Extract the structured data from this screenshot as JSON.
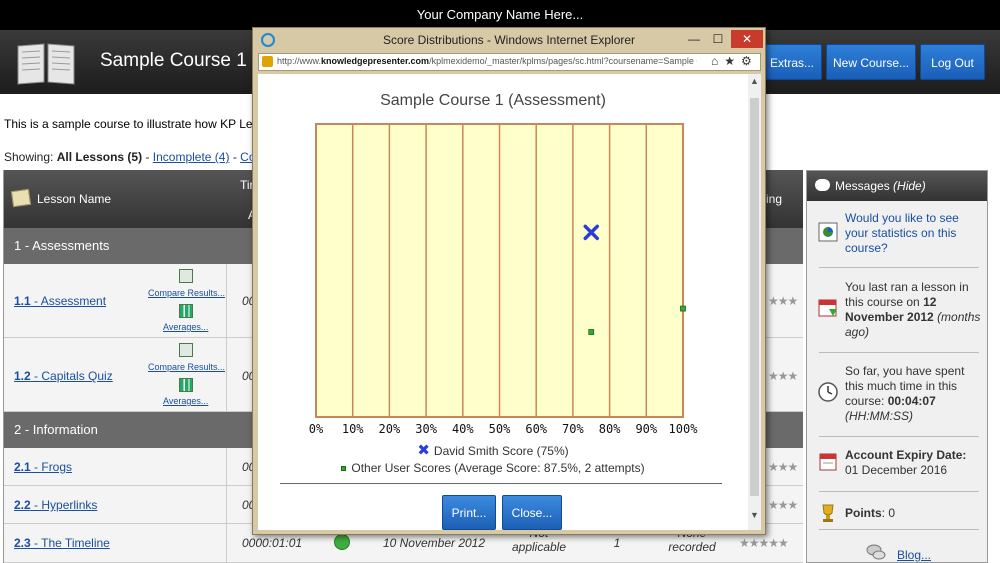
{
  "company_bar": {
    "text": "Your Company Name Here..."
  },
  "header": {
    "course_title": "Sample Course 1",
    "buttons": {
      "extras": "Extras...",
      "new_course": "New Course...",
      "logout": "Log Out"
    }
  },
  "intro": {
    "text": "This is a sample course to illustrate how KP Lear"
  },
  "filter": {
    "prefix": "Showing:",
    "all": "All Lessons (5)",
    "sep": "-",
    "incomplete": "Incomplete (4)",
    "sep2": "-",
    "complete": "Com"
  },
  "table": {
    "headers": {
      "lesson_name": "Lesson Name",
      "time_partial": "Tir",
      "a_partial": "A",
      "rating_partial": "ing"
    },
    "groups": [
      "1 - Assessments",
      "2 - Information"
    ],
    "rows": [
      {
        "number": "1.1",
        "title": "Assessment",
        "time": "00",
        "compare": "Compare Results...",
        "averages": "Averages...",
        "stars": "★★★"
      },
      {
        "number": "1.2",
        "title": "Capitals Quiz",
        "time": "00",
        "compare": "Compare Results...",
        "averages": "Averages...",
        "stars": "★★★"
      },
      {
        "number": "2.1",
        "title": "Frogs",
        "time": "00",
        "stars": "★★★"
      },
      {
        "number": "2.2",
        "title": "Hyperlinks",
        "time": "00",
        "stars": "★★★"
      },
      {
        "number": "2.3",
        "title": "The Timeline",
        "time": "0000:01:01",
        "date": "10 November 2012",
        "score": "Not applicable",
        "attempts": "1",
        "recorded": "None recorded",
        "stars": "★★★★★"
      }
    ]
  },
  "messages": {
    "title": "Messages",
    "hide": "(Hide)",
    "items": {
      "stats_link": "Would you like to see your statistics on this course?",
      "last_ran_prefix": "You last ran a lesson in this course on",
      "last_ran_date": "12 November 2012",
      "last_ran_ago": "(months ago)",
      "time_prefix": "So far, you have spent this much time in this course:",
      "time_value": "00:04:07",
      "time_unit": "(HH:MM:SS)",
      "expiry_label": "Account Expiry Date:",
      "expiry_date": "01 December 2016",
      "points_label": "Points",
      "points_value": ": 0",
      "blog": "Blog..."
    }
  },
  "popup": {
    "window_title": "Score Distributions - Windows Internet Explorer",
    "controls": {
      "minimize": "—",
      "maximize": "☐",
      "close": "✕"
    },
    "address": {
      "prefix": "http://www.",
      "domain": "knowledgepresenter.com",
      "path": "/kplmexidemo/_master/kplms/pages/sc.html?coursename=Sample C"
    },
    "address_icons": "⌂★⚙",
    "print_button": "Print...",
    "close_button": "Close...",
    "legend": {
      "user_series": "David Smith Score (75%)",
      "others_series": "Other User Scores (Average Score: 87.5%, 2 attempts)"
    }
  },
  "chart_data": {
    "type": "scatter",
    "title": "Sample Course 1 (Assessment)",
    "xlabel": "",
    "ylabel": "",
    "xlim": [
      0,
      100
    ],
    "x_ticks": [
      "0%",
      "10%",
      "20%",
      "30%",
      "40%",
      "50%",
      "60%",
      "70%",
      "80%",
      "90%",
      "100%"
    ],
    "grid": "vertical",
    "background": "#ffffcc",
    "series": [
      {
        "name": "David Smith Score (75%)",
        "marker": "x",
        "color": "#2b3fd6",
        "points": [
          {
            "x": 75,
            "y": 0.63
          }
        ]
      },
      {
        "name": "Other User Scores (Average Score: 87.5%, 2 attempts)",
        "marker": "square",
        "color": "#37a537",
        "points": [
          {
            "x": 75,
            "y": 0.29
          },
          {
            "x": 100,
            "y": 0.37
          }
        ]
      }
    ]
  },
  "colors": {
    "accent": "#2f7fd8",
    "header_bg": "#2a2a2a",
    "chart_border": "#c8865a"
  }
}
